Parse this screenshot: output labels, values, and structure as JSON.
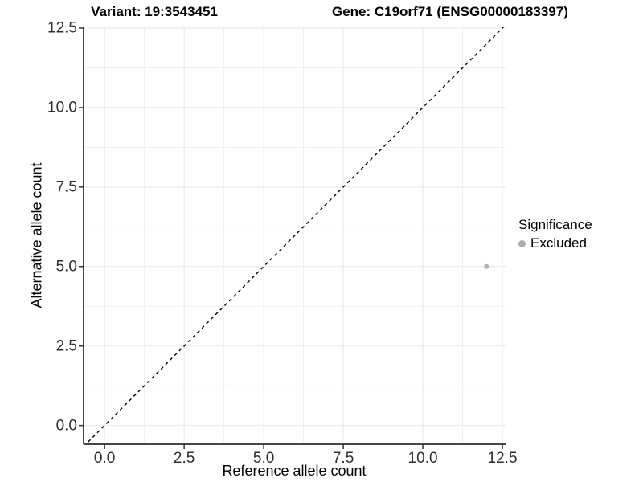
{
  "title": {
    "variant": "Variant: 19:3543451",
    "gene": "Gene: C19orf71 (ENSG00000183397)"
  },
  "axes": {
    "x": {
      "label": "Reference allele count",
      "ticks": [
        "0.0",
        "2.5",
        "5.0",
        "7.5",
        "10.0",
        "12.5"
      ]
    },
    "y": {
      "label": "Alternative allele count",
      "ticks": [
        "0.0",
        "2.5",
        "5.0",
        "7.5",
        "10.0",
        "12.5"
      ]
    }
  },
  "legend": {
    "title": "Significance",
    "items": [
      {
        "label": "Excluded",
        "color": "#adadad"
      }
    ]
  },
  "colors": {
    "grid_major": "#e7e7e7",
    "grid_minor": "#f0f0f0",
    "axis_line": "#464646",
    "tick_mark": "#333333",
    "ref_line": "#000000",
    "point": "#b0b0b0"
  },
  "chart_data": {
    "type": "scatter",
    "title": "Variant: 19:3543451    Gene: C19orf71 (ENSG00000183397)",
    "xlabel": "Reference allele count",
    "ylabel": "Alternative allele count",
    "xlim": [
      -0.66,
      12.6
    ],
    "ylim": [
      -0.59,
      12.55
    ],
    "xticks": [
      0,
      2.5,
      5,
      7.5,
      10,
      12.5
    ],
    "yticks": [
      0,
      2.5,
      5,
      7.5,
      10,
      12.5
    ],
    "minor_ticks": [
      1.25,
      3.75,
      6.25,
      8.75,
      11.25
    ],
    "grid": true,
    "legend_position": "right",
    "series": [
      {
        "name": "Excluded",
        "color": "#b0b0b0",
        "points": [
          {
            "x": 12,
            "y": 5
          }
        ]
      }
    ],
    "reference_line": {
      "kind": "identity",
      "style": "dashed",
      "slope": 1,
      "intercept": 0
    }
  }
}
